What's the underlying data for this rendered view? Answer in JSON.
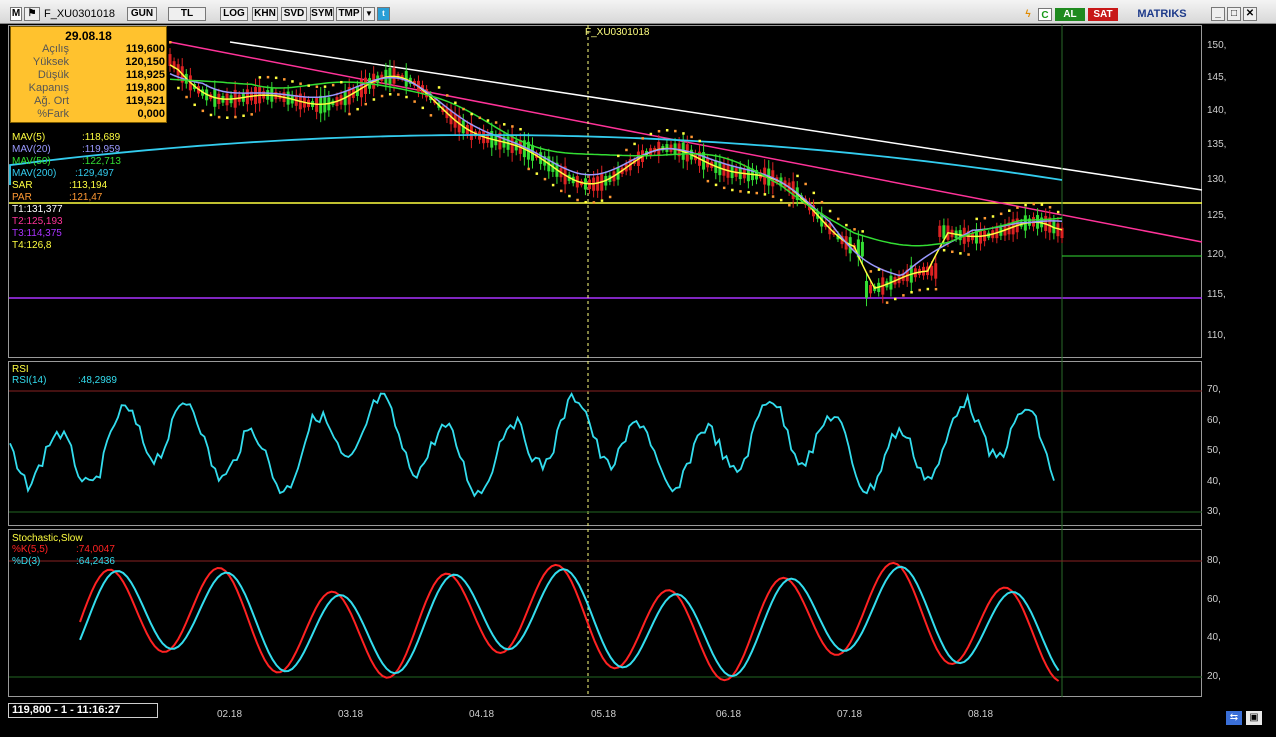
{
  "toolbar": {
    "symbol": "F_XU0301018",
    "buttons": [
      "GUN",
      "TL",
      "LOG",
      "KHN",
      "SVD",
      "SYM",
      "TMP"
    ],
    "al_label": "AL",
    "sat_label": "SAT",
    "brand": "MATRIKS"
  },
  "main_chart": {
    "symbol_label": "F_XU0301018",
    "y_ticks": [
      "150,",
      "145,",
      "140,",
      "135,",
      "130,",
      "125,",
      "120,",
      "115,",
      "110,"
    ],
    "info": {
      "date": "29.08.18",
      "rows": [
        {
          "label": "Açılış",
          "value": "119,600"
        },
        {
          "label": "Yüksek",
          "value": "120,150"
        },
        {
          "label": "Düşük",
          "value": "118,925"
        },
        {
          "label": "Kapanış",
          "value": "119,800"
        },
        {
          "label": "Ağ. Ort",
          "value": "119,521"
        },
        {
          "label": "%Fark",
          "value": "0,000"
        }
      ]
    },
    "indicators": [
      {
        "label": "MAV(5)",
        "value": ":118,689",
        "color": "#ffff40"
      },
      {
        "label": "MAV(20)",
        "value": ":119,959",
        "color": "#9999ff"
      },
      {
        "label": "MAV(50)",
        "value": ":122,713",
        "color": "#33dd33"
      },
      {
        "label": "MAV(200)",
        "value": ":129,497",
        "color": "#33ccee"
      },
      {
        "label": "SAR",
        "value": ":113,194",
        "color": "#ffff40"
      },
      {
        "label": "PAR",
        "value": ":121,47",
        "color": "#ff9933"
      }
    ],
    "trend_labels": [
      {
        "text": "T1:131,377",
        "color": "#ffffff"
      },
      {
        "text": "T2:125,193",
        "color": "#ff3399"
      },
      {
        "text": "T3:114,375",
        "color": "#aa33ff"
      },
      {
        "text": "T4:126,8",
        "color": "#ffff40"
      }
    ]
  },
  "rsi_panel": {
    "title": "RSI",
    "label": "RSI(14)",
    "value": ":48,2989",
    "y_ticks": [
      "70,",
      "60,",
      "50,",
      "40,",
      "30,"
    ]
  },
  "stoch_panel": {
    "title": "Stochastic,Slow",
    "k_label": "%K(5,5)",
    "k_value": ":74,0047",
    "d_label": "%D(3)",
    "d_value": ":64,2436",
    "y_ticks": [
      "80,",
      "60,",
      "40,",
      "20,"
    ]
  },
  "x_axis": {
    "dates": [
      "02.18",
      "03.18",
      "04.18",
      "05.18",
      "06.18",
      "07.18",
      "08.18"
    ]
  },
  "status": {
    "text": "119,800 - 1 - 11:16:27"
  },
  "colors": {
    "rsi_line": "#33ddee",
    "stoch_k": "#ff2222",
    "stoch_d": "#33ddee",
    "trend_white": "#ffffff",
    "trend_pink": "#ff3399",
    "level_yellow": "#ffff40",
    "level_purple": "#aa33ff"
  }
}
